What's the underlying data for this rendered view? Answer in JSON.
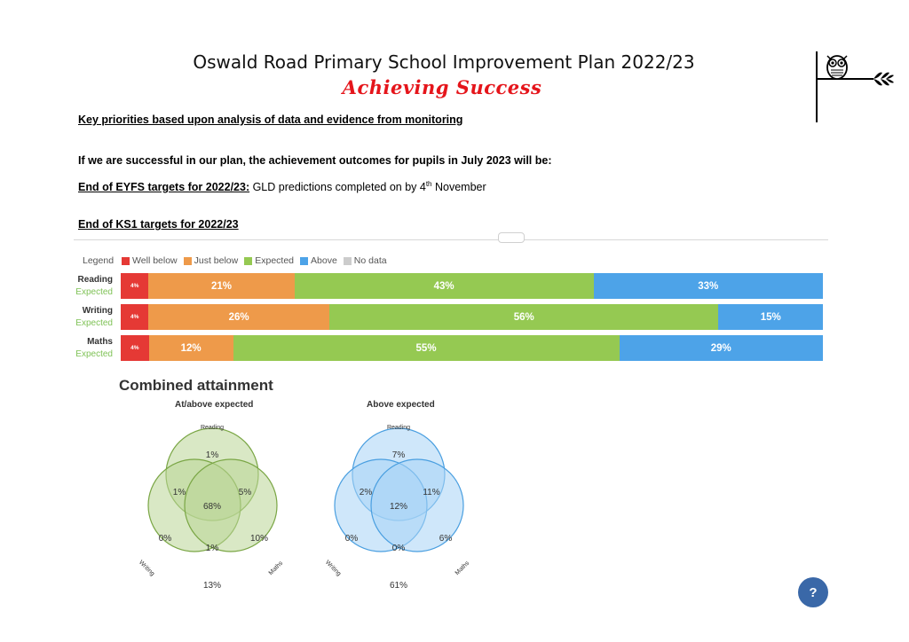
{
  "header": {
    "title": "Oswald Road Primary School Improvement Plan 2022/23",
    "subtitle": "Achieving Success"
  },
  "body": {
    "priorities_heading": "Key priorities based upon analysis of data and evidence from monitoring",
    "intro": "If we are successful in our plan, the achievement outcomes for pupils in July 2023 will be:",
    "eyfs_label": "End of EYFS targets for 2022/23:",
    "eyfs_text_before": " GLD predictions completed on by 4",
    "eyfs_sup": "th",
    "eyfs_text_after": " November",
    "ks1_heading": "End of KS1 targets for 2022/23"
  },
  "legend": {
    "title": "Legend",
    "items": [
      {
        "label": "Well below",
        "color": "#e53935"
      },
      {
        "label": "Just below",
        "color": "#ee9a4a"
      },
      {
        "label": "Expected",
        "color": "#95c952"
      },
      {
        "label": "Above",
        "color": "#4da3e8"
      },
      {
        "label": "No data",
        "color": "#cccccc"
      }
    ]
  },
  "chart_data": {
    "type": "bar",
    "stacked": true,
    "orientation": "horizontal",
    "categories": [
      "Reading",
      "Writing",
      "Maths"
    ],
    "category_sublabels": [
      "Expected",
      "Expected",
      "Expected"
    ],
    "series": [
      {
        "name": "Well below",
        "color": "#e53935",
        "values": [
          4,
          4,
          4
        ]
      },
      {
        "name": "Just below",
        "color": "#ee9a4a",
        "values": [
          21,
          26,
          12
        ]
      },
      {
        "name": "Expected",
        "color": "#95c952",
        "values": [
          43,
          56,
          55
        ]
      },
      {
        "name": "Above",
        "color": "#4da3e8",
        "values": [
          33,
          15,
          29
        ]
      }
    ],
    "value_labels": [
      [
        "4%",
        "21%",
        "43%",
        "33%"
      ],
      [
        "4%",
        "26%",
        "56%",
        "15%"
      ],
      [
        "4%",
        "12%",
        "55%",
        "29%"
      ]
    ]
  },
  "combined": {
    "title": "Combined attainment",
    "venn": [
      {
        "title": "At/above expected",
        "set_labels": [
          "Reading",
          "Writing",
          "Maths"
        ],
        "regions": {
          "reading_only": "1%",
          "reading_writing": "1%",
          "reading_maths": "5%",
          "all": "68%",
          "writing_only": "0%",
          "maths_only": "10%",
          "writing_maths": "1%",
          "none": "13%"
        },
        "fill": "#b9d595",
        "stroke": "#7aa645"
      },
      {
        "title": "Above expected",
        "set_labels": [
          "Reading",
          "Writing",
          "Maths"
        ],
        "regions": {
          "reading_only": "7%",
          "reading_writing": "2%",
          "reading_maths": "11%",
          "all": "12%",
          "writing_only": "0%",
          "maths_only": "6%",
          "writing_maths": "0%",
          "none": "61%"
        },
        "fill": "#a8d4f5",
        "stroke": "#4a9fe0"
      }
    ]
  },
  "help": {
    "label": "?"
  }
}
